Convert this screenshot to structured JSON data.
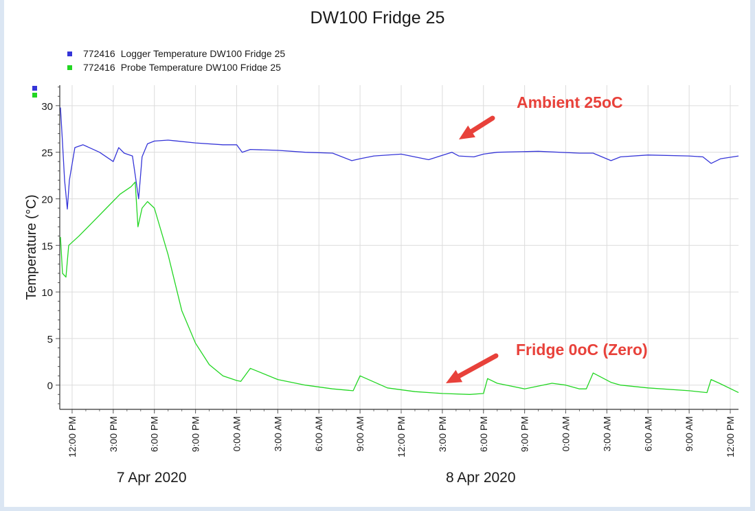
{
  "chart_data": {
    "type": "line",
    "title": "DW100 Fridge 25",
    "ylabel": "Temperature (°C)",
    "xlabel": "",
    "ylim": [
      -2.6,
      32.2
    ],
    "y_ticks": [
      0,
      5,
      10,
      15,
      20,
      25,
      30
    ],
    "xlim_hours": [
      -0.9,
      48.6
    ],
    "x_ticks": [
      "12:00 PM",
      "3:00 PM",
      "6:00 PM",
      "9:00 PM",
      "0:00 AM",
      "3:00 AM",
      "6:00 AM",
      "9:00 AM",
      "12:00 PM",
      "3:00 PM",
      "6:00 PM",
      "9:00 PM",
      "0:00 AM",
      "3:00 AM",
      "6:00 AM",
      "9:00 AM",
      "12:00 PM"
    ],
    "date_labels": [
      "7 Apr 2020",
      "8 Apr 2020"
    ],
    "grid": true,
    "legend_position": "top-left",
    "series": [
      {
        "id": "772416",
        "name": "Logger Temperature DW100 Fridge 25",
        "color": "#3535d8",
        "x": [
          -0.85,
          -0.7,
          -0.55,
          -0.35,
          -0.2,
          0.2,
          0.8,
          2.0,
          3.0,
          3.4,
          3.8,
          4.4,
          4.85,
          5.1,
          5.5,
          6.0,
          7.0,
          9.0,
          11.0,
          12.0,
          12.4,
          13.0,
          15.0,
          17.0,
          19.0,
          20.4,
          21.0,
          22.0,
          24.0,
          26.0,
          27.7,
          28.2,
          29.3,
          30.0,
          31.0,
          34.0,
          37.0,
          38.0,
          39.3,
          40.0,
          42.0,
          45.0,
          46.0,
          46.6,
          47.3,
          48.6
        ],
        "y": [
          29.8,
          26.0,
          22.0,
          18.9,
          22.0,
          25.5,
          25.8,
          25.0,
          24.0,
          25.5,
          24.9,
          24.6,
          20.0,
          24.5,
          25.9,
          26.2,
          26.3,
          26.0,
          25.8,
          25.8,
          25.0,
          25.3,
          25.2,
          25.0,
          24.9,
          24.1,
          24.3,
          24.6,
          24.8,
          24.2,
          25.0,
          24.6,
          24.5,
          24.8,
          25.0,
          25.1,
          24.9,
          24.9,
          24.1,
          24.5,
          24.7,
          24.6,
          24.5,
          23.8,
          24.3,
          24.6
        ]
      },
      {
        "id": "772416",
        "name": "Probe Temperature DW100 Fridge 25",
        "color": "#22d622",
        "x": [
          -0.85,
          -0.7,
          -0.45,
          -0.25,
          0.5,
          1.5,
          2.5,
          3.5,
          4.3,
          4.6,
          4.8,
          5.1,
          5.5,
          6.0,
          7.0,
          8.0,
          9.0,
          10.0,
          11.0,
          12.0,
          12.3,
          13.0,
          15.0,
          17.0,
          19.0,
          20.5,
          21.0,
          23.0,
          25.0,
          27.0,
          29.0,
          30.0,
          30.3,
          31.0,
          33.0,
          35.0,
          36.0,
          37.0,
          37.5,
          38.0,
          39.3,
          40.0,
          42.0,
          45.0,
          46.3,
          46.6,
          47.2,
          48.6
        ],
        "y": [
          15.9,
          12.0,
          11.6,
          15.0,
          16.0,
          17.5,
          19.0,
          20.5,
          21.3,
          21.8,
          17.0,
          19.0,
          19.7,
          19.0,
          14.0,
          8.0,
          4.5,
          2.2,
          1.0,
          0.5,
          0.4,
          1.8,
          0.6,
          0.0,
          -0.4,
          -0.6,
          1.0,
          -0.3,
          -0.7,
          -0.9,
          -1.0,
          -0.9,
          0.7,
          0.2,
          -0.4,
          0.2,
          0.0,
          -0.4,
          -0.4,
          1.3,
          0.3,
          0.0,
          -0.3,
          -0.6,
          -0.8,
          0.6,
          0.2,
          -0.8
        ]
      }
    ],
    "annotations": [
      {
        "text": "Ambient 25oC",
        "color": "#e8413a"
      },
      {
        "text": "Fridge 0oC (Zero)",
        "color": "#e8413a"
      }
    ]
  }
}
